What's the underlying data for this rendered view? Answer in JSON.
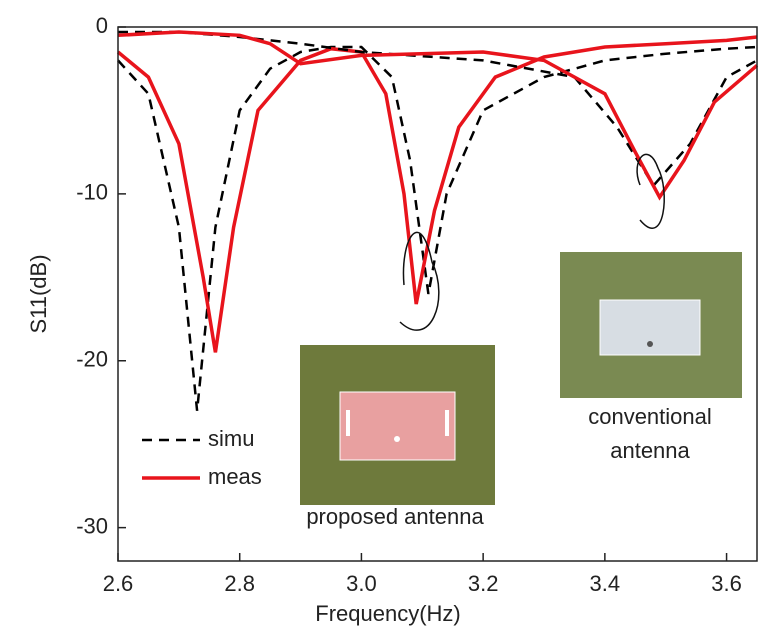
{
  "chart_data": {
    "type": "line",
    "xlabel": "Frequency(Hz)",
    "ylabel": "S11(dB)",
    "xlim": [
      2.6,
      3.65
    ],
    "ylim": [
      -32,
      0
    ],
    "xticks": [
      2.6,
      2.8,
      {
        "value": 3,
        "label": "3.0"
      },
      3.2,
      3.4,
      3.6
    ],
    "yticks": [
      0,
      -10,
      -20,
      -30
    ],
    "series": [
      {
        "name": "simu",
        "color": "#000000",
        "dashed": true,
        "x": [
          2.6,
          2.65,
          2.7,
          2.73,
          2.76,
          2.8,
          2.85,
          2.9,
          2.95,
          3.0,
          3.05,
          3.08,
          3.11,
          3.14,
          3.2,
          3.3,
          3.4,
          3.5,
          3.6,
          3.65
        ],
        "values": [
          -2,
          -4,
          -12,
          -23,
          -12,
          -5,
          -2.5,
          -1.5,
          -1.2,
          -1.2,
          -3,
          -8,
          -16,
          -10,
          -5,
          -3,
          -2,
          -1.6,
          -1.3,
          -1.2
        ]
      },
      {
        "name": "meas",
        "color": "#e8141c",
        "dashed": false,
        "x": [
          2.6,
          2.65,
          2.7,
          2.74,
          2.76,
          2.79,
          2.83,
          2.9,
          2.95,
          3.0,
          3.04,
          3.07,
          3.09,
          3.12,
          3.16,
          3.22,
          3.3,
          3.4,
          3.5,
          3.6,
          3.65
        ],
        "values": [
          -1.5,
          -3,
          -7,
          -15,
          -19.5,
          -12,
          -5,
          -2,
          -1.3,
          -1.5,
          -4,
          -10,
          -16.6,
          -11,
          -6,
          -3,
          -1.8,
          -1.2,
          -1,
          -0.8,
          -0.6
        ]
      },
      {
        "color": "#000000",
        "dashed": true,
        "x": [
          2.6,
          2.7,
          2.8,
          2.9,
          3.0,
          3.2,
          3.35,
          3.42,
          3.48,
          3.54,
          3.6,
          3.65
        ],
        "values": [
          -0.3,
          -0.3,
          -0.6,
          -1,
          -1.5,
          -2,
          -3,
          -6,
          -9.5,
          -7,
          -3,
          -2
        ]
      },
      {
        "color": "#e8141c",
        "dashed": false,
        "x": [
          2.6,
          2.7,
          2.8,
          2.85,
          2.9,
          3.0,
          3.2,
          3.3,
          3.4,
          3.45,
          3.49,
          3.53,
          3.58,
          3.65
        ],
        "values": [
          -0.5,
          -0.3,
          -0.5,
          -1,
          -2.2,
          -1.7,
          -1.5,
          -2,
          -4,
          -7.5,
          -10.2,
          -8,
          -4.5,
          -2.3
        ]
      }
    ],
    "proposed_caption": "proposed antenna",
    "conventional_caption": [
      "conventional",
      "antenna"
    ]
  }
}
